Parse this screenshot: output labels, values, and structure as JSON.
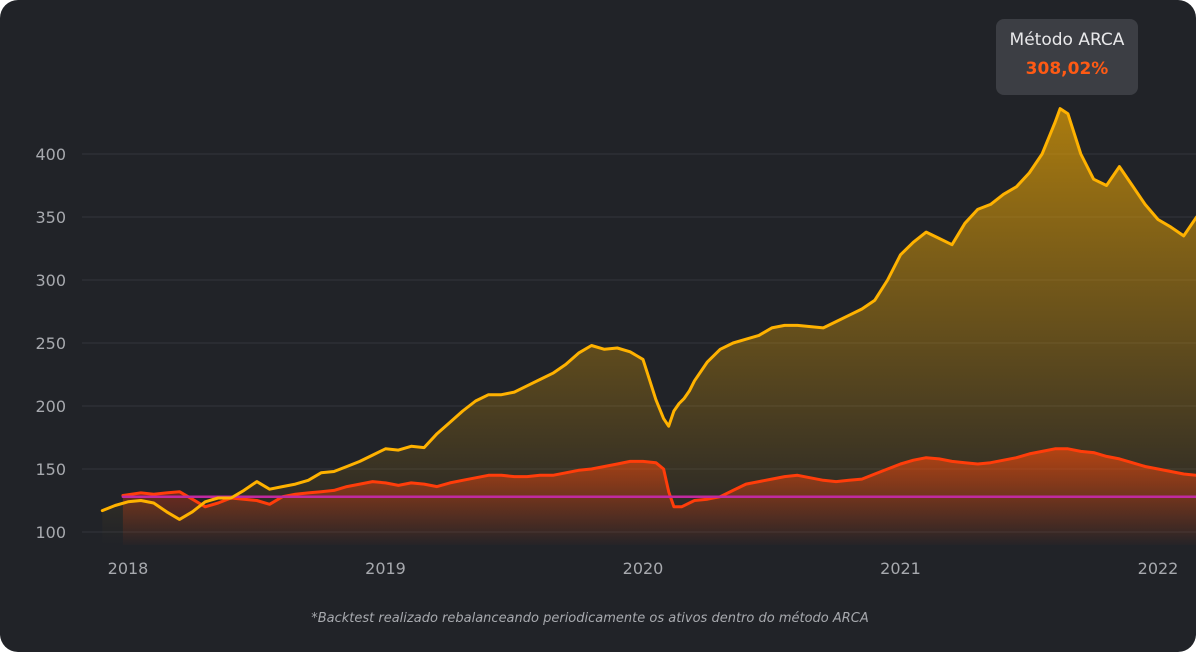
{
  "chart_data": {
    "type": "line",
    "x_ticks": [
      "2018",
      "2019",
      "2020",
      "2021",
      "2022"
    ],
    "y_ticks": [
      100,
      150,
      200,
      250,
      300,
      350,
      400
    ],
    "ylim": [
      90,
      440
    ],
    "xlim": [
      2017.9,
      2022.17
    ],
    "grid": "horizontal",
    "series": [
      {
        "name": "Método ARCA",
        "color": "#ffb200",
        "x": [
          2017.9,
          2017.95,
          2018.0,
          2018.05,
          2018.1,
          2018.15,
          2018.2,
          2018.25,
          2018.3,
          2018.35,
          2018.4,
          2018.45,
          2018.5,
          2018.55,
          2018.6,
          2018.65,
          2018.7,
          2018.75,
          2018.8,
          2018.85,
          2018.9,
          2018.95,
          2019.0,
          2019.05,
          2019.1,
          2019.15,
          2019.2,
          2019.25,
          2019.3,
          2019.35,
          2019.4,
          2019.45,
          2019.5,
          2019.55,
          2019.6,
          2019.65,
          2019.7,
          2019.75,
          2019.8,
          2019.85,
          2019.9,
          2019.95,
          2020.0,
          2020.05,
          2020.08,
          2020.1,
          2020.12,
          2020.14,
          2020.16,
          2020.18,
          2020.2,
          2020.25,
          2020.3,
          2020.35,
          2020.4,
          2020.45,
          2020.5,
          2020.55,
          2020.6,
          2020.65,
          2020.7,
          2020.75,
          2020.8,
          2020.85,
          2020.9,
          2020.95,
          2021.0,
          2021.05,
          2021.1,
          2021.15,
          2021.2,
          2021.25,
          2021.3,
          2021.35,
          2021.4,
          2021.45,
          2021.5,
          2021.55,
          2021.6,
          2021.62,
          2021.65,
          2021.7,
          2021.75,
          2021.8,
          2021.85,
          2021.9,
          2021.95,
          2022.0,
          2022.05,
          2022.1,
          2022.15,
          2022.17
        ],
        "values": [
          117,
          121,
          124,
          125,
          123,
          116,
          110,
          116,
          124,
          127,
          127,
          133,
          140,
          134,
          136,
          138,
          141,
          147,
          148,
          152,
          156,
          161,
          166,
          165,
          168,
          167,
          178,
          187,
          196,
          204,
          209,
          209,
          211,
          216,
          221,
          226,
          233,
          242,
          248,
          245,
          246,
          243,
          237,
          205,
          190,
          184,
          196,
          202,
          206,
          212,
          220,
          235,
          245,
          250,
          253,
          256,
          262,
          264,
          264,
          263,
          262,
          267,
          272,
          277,
          284,
          300,
          320,
          330,
          338,
          333,
          328,
          345,
          356,
          360,
          368,
          374,
          385,
          400,
          425,
          436,
          432,
          400,
          380,
          375,
          390,
          375,
          360,
          348,
          342,
          335,
          350,
          354
        ]
      },
      {
        "name": "",
        "color": "#ff3d0a",
        "x": [
          2017.98,
          2018.05,
          2018.1,
          2018.15,
          2018.2,
          2018.25,
          2018.3,
          2018.35,
          2018.4,
          2018.45,
          2018.5,
          2018.55,
          2018.6,
          2018.65,
          2018.7,
          2018.75,
          2018.8,
          2018.85,
          2018.9,
          2018.95,
          2019.0,
          2019.05,
          2019.1,
          2019.15,
          2019.2,
          2019.25,
          2019.3,
          2019.35,
          2019.4,
          2019.45,
          2019.5,
          2019.55,
          2019.6,
          2019.65,
          2019.7,
          2019.75,
          2019.8,
          2019.85,
          2019.9,
          2019.95,
          2020.0,
          2020.05,
          2020.08,
          2020.1,
          2020.12,
          2020.15,
          2020.2,
          2020.25,
          2020.3,
          2020.35,
          2020.4,
          2020.45,
          2020.5,
          2020.55,
          2020.6,
          2020.65,
          2020.7,
          2020.75,
          2020.8,
          2020.85,
          2020.9,
          2020.95,
          2021.0,
          2021.05,
          2021.1,
          2021.15,
          2021.2,
          2021.25,
          2021.3,
          2021.35,
          2021.4,
          2021.45,
          2021.5,
          2021.55,
          2021.6,
          2021.65,
          2021.7,
          2021.75,
          2021.8,
          2021.85,
          2021.9,
          2021.95,
          2022.0,
          2022.05,
          2022.1,
          2022.15,
          2022.17
        ],
        "values": [
          129,
          131,
          130,
          131,
          132,
          126,
          120,
          123,
          127,
          126,
          125,
          122,
          128,
          130,
          131,
          132,
          133,
          136,
          138,
          140,
          139,
          137,
          139,
          138,
          136,
          139,
          141,
          143,
          145,
          145,
          144,
          144,
          145,
          145,
          147,
          149,
          150,
          152,
          154,
          156,
          156,
          155,
          150,
          132,
          120,
          120,
          125,
          126,
          128,
          133,
          138,
          140,
          142,
          144,
          145,
          143,
          141,
          140,
          141,
          142,
          146,
          150,
          154,
          157,
          159,
          158,
          156,
          155,
          154,
          155,
          157,
          159,
          162,
          164,
          166,
          166,
          164,
          163,
          160,
          158,
          155,
          152,
          150,
          148,
          146,
          145,
          145
        ]
      },
      {
        "name": "",
        "color": "#c02aa0",
        "x": [
          2017.98,
          2022.17
        ],
        "values": [
          128,
          128
        ]
      }
    ]
  },
  "tooltip": {
    "title": "Método ARCA",
    "value": "308,02%"
  },
  "footnote": "*Backtest realizado rebalanceando periodicamente os ativos dentro do método ARCA"
}
